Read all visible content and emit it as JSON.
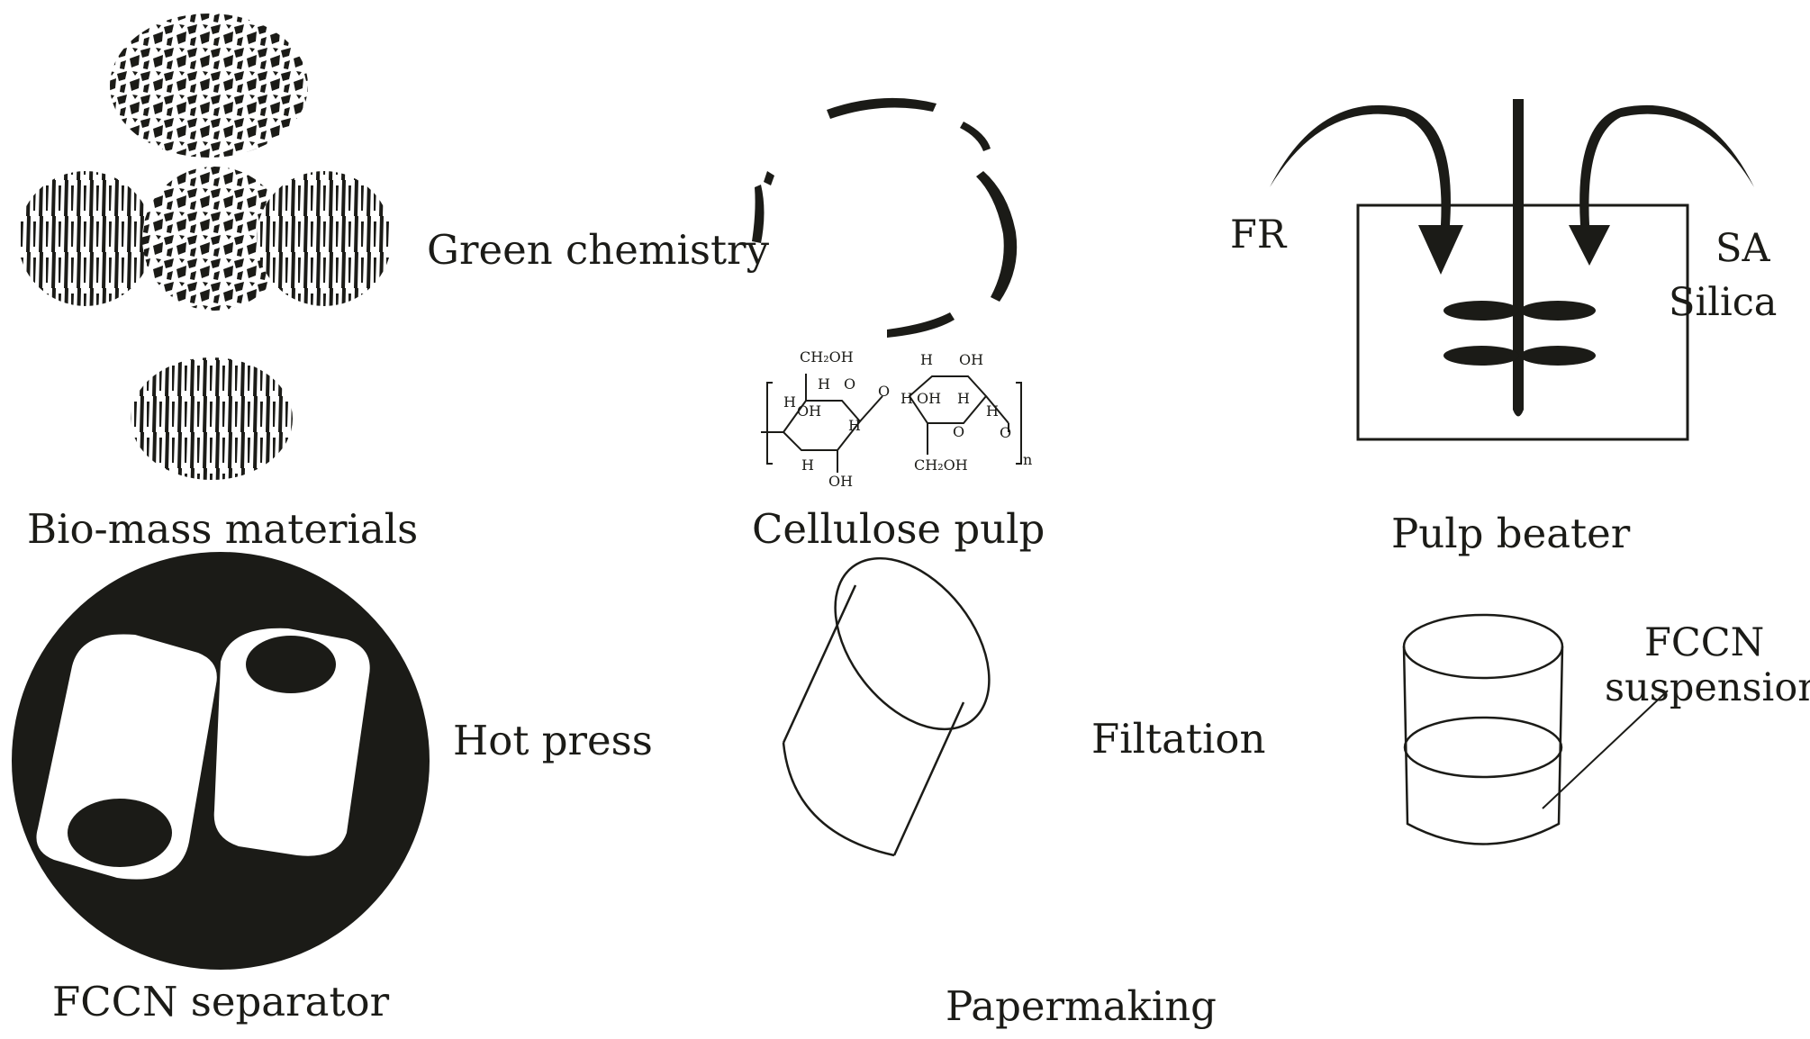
{
  "captions": {
    "biomass": "Bio-mass materials",
    "cellulose": "Cellulose pulp",
    "beater": "Pulp beater",
    "separator": "FCCN separator",
    "papermaking": "Papermaking"
  },
  "steps": {
    "green_chemistry": "Green chemistry",
    "hot_press": "Hot press",
    "filtation": "Filtation"
  },
  "beater_inputs": {
    "left": "FR",
    "right_line1": "SA",
    "right_line2": "Silica"
  },
  "suspension": {
    "line1": "FCCN",
    "line2": "suspension"
  },
  "cellulose_structure": {
    "ch2oh": "CH₂OH",
    "oh": "OH",
    "h": "H",
    "o": "O",
    "n": "n"
  },
  "colors": {
    "ink": "#1b1b17",
    "background": "#ffffff"
  }
}
